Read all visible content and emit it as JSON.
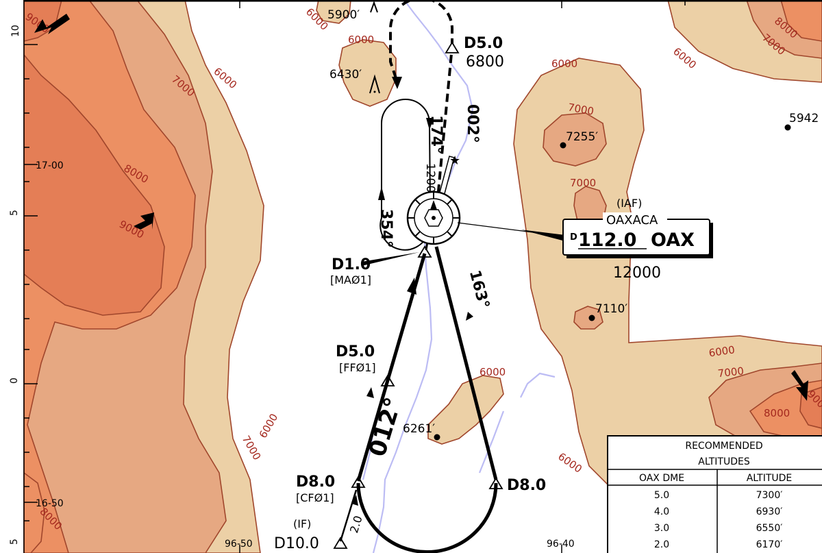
{
  "contour_labels": {
    "nw_9000": "9000",
    "nw_8000": "8000",
    "nw_7000": "7000",
    "nw_6000": "6000",
    "w_9000": "9000",
    "w_8000": "8000",
    "top_6000": "6000",
    "hill_n_6000": "6000",
    "e_6000": "6000",
    "e_7000_peak": "7000",
    "e_7000_mid": "7000",
    "ne_8000": "8000",
    "ne_7000": "7000",
    "ne_6000": "6000",
    "c_6000": "6000",
    "se_6000": "6000",
    "se_7000": "7000",
    "se_8000": "8000",
    "se_9000": "9000",
    "s_6000": "6000",
    "sw_6000": "6000",
    "sw_7000": "7000",
    "sw_8000": "8000"
  },
  "spot_elevations": {
    "top": "5900′",
    "hill_n": "6430′",
    "e1": "7255′",
    "ne": "5942",
    "e2": "7110′",
    "s": "6261′"
  },
  "fixes": {
    "d5_north": {
      "name": "D5.0",
      "alt": "6800"
    },
    "d1": {
      "name": "D1.0",
      "code": "[MAØ1]"
    },
    "d5_ff": {
      "name": "D5.0",
      "code": "[FFØ1]"
    },
    "d8_cf": {
      "name": "D8.0",
      "code": "[CFØ1]"
    },
    "d8_east": {
      "name": "D8.0"
    },
    "d10": {
      "name": "D10.0",
      "role": "(IF)"
    }
  },
  "courses": {
    "c174": "174°",
    "c002": "002°",
    "c354": "354°",
    "c163": "163°",
    "c012": "012°",
    "leg_dist": "2.0"
  },
  "holding_alt": "12000",
  "navaid": {
    "role": "(IAF)",
    "name": "OAXACA",
    "dme_mark": "D",
    "freq": "112.0",
    "ident": "OAX",
    "morse": "--- .- -..-",
    "alt": "12000"
  },
  "grid": {
    "lat_1700": "17-00",
    "lat_1650": "16-50",
    "lon_9650": "96-50",
    "lon_9640": "96-40",
    "tick_10": "10",
    "tick_5_top": "5",
    "tick_0": "0",
    "tick_5_bot": "5"
  },
  "table": {
    "title1": "RECOMMENDED",
    "title2": "ALTITUDES",
    "col_dme": "OAX DME",
    "col_alt": "ALTITUDE",
    "rows": [
      {
        "dme": "5.0",
        "alt": "7300′"
      },
      {
        "dme": "4.0",
        "alt": "6930′"
      },
      {
        "dme": "3.0",
        "alt": "6550′"
      },
      {
        "dme": "2.0",
        "alt": "6170′"
      }
    ]
  },
  "colors": {
    "tint_6000": "#ecd0a6",
    "tint_7000": "#e6a882",
    "tint_8000": "#ec9063",
    "tint_9000": "#e47e56",
    "contour": "#a0462c",
    "river": "#bcbcf4"
  }
}
